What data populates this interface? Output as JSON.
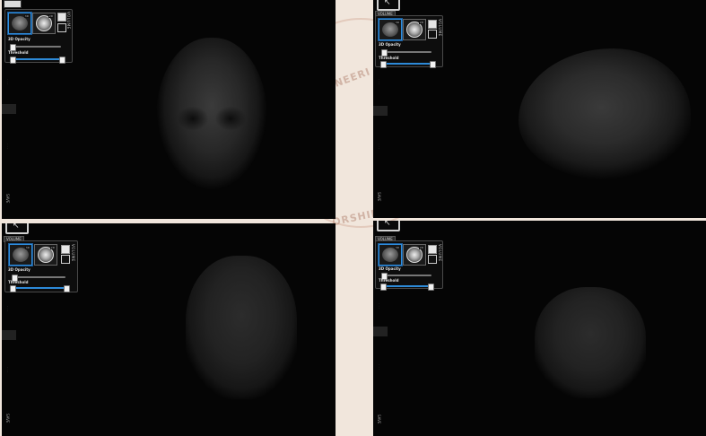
{
  "watermark": {
    "text_top": "NEERI",
    "text_bottom": "ORSHIP"
  },
  "panes": [
    {
      "id": "top-left",
      "view_icon": "back-arrow-icon",
      "top_label": "VOLUME",
      "thumb_tag_1": "3D",
      "thumb_tag_2": "2D",
      "volume_vertical": "VOLUME",
      "opacity_label": "3D Opacity",
      "threshold_label": "Threshold",
      "opacity_value": 0.05,
      "threshold_low": 0.02,
      "threshold_high": 0.98,
      "side_bottom": "SAVE",
      "render": "head-front"
    },
    {
      "id": "top-right",
      "view_icon": "back-arrow-icon",
      "top_label": "VOLUME",
      "thumb_tag_1": "3D",
      "thumb_tag_2": "2D",
      "volume_vertical": "VOLUME",
      "opacity_label": "3D Opacity",
      "threshold_label": "Threshold",
      "opacity_value": 0.05,
      "threshold_low": 0.02,
      "threshold_high": 0.98,
      "side_bottom": "SAVE",
      "render": "head-side"
    },
    {
      "id": "bottom-left",
      "view_icon": "back-arrow-icon",
      "top_label": "VOLUME",
      "thumb_tag_1": "3D",
      "thumb_tag_2": "2D",
      "volume_vertical": "VOLUME",
      "opacity_label": "3D Opacity",
      "threshold_label": "Threshold",
      "opacity_value": 0.05,
      "threshold_low": 0.02,
      "threshold_high": 0.98,
      "side_bottom": "SAVE",
      "render": "head-back"
    },
    {
      "id": "bottom-right",
      "view_icon": "back-arrow-icon",
      "top_label": "VOLUME",
      "thumb_tag_1": "3D",
      "thumb_tag_2": "2D",
      "volume_vertical": "VOLUME",
      "opacity_label": "3D Opacity",
      "threshold_label": "Threshold",
      "opacity_value": 0.05,
      "threshold_low": 0.02,
      "threshold_high": 0.98,
      "side_bottom": "SAVE",
      "render": "head-back"
    }
  ],
  "colors": {
    "background": "#f1e6dc",
    "viewer": "#050505",
    "accent": "#2d8ad8"
  }
}
